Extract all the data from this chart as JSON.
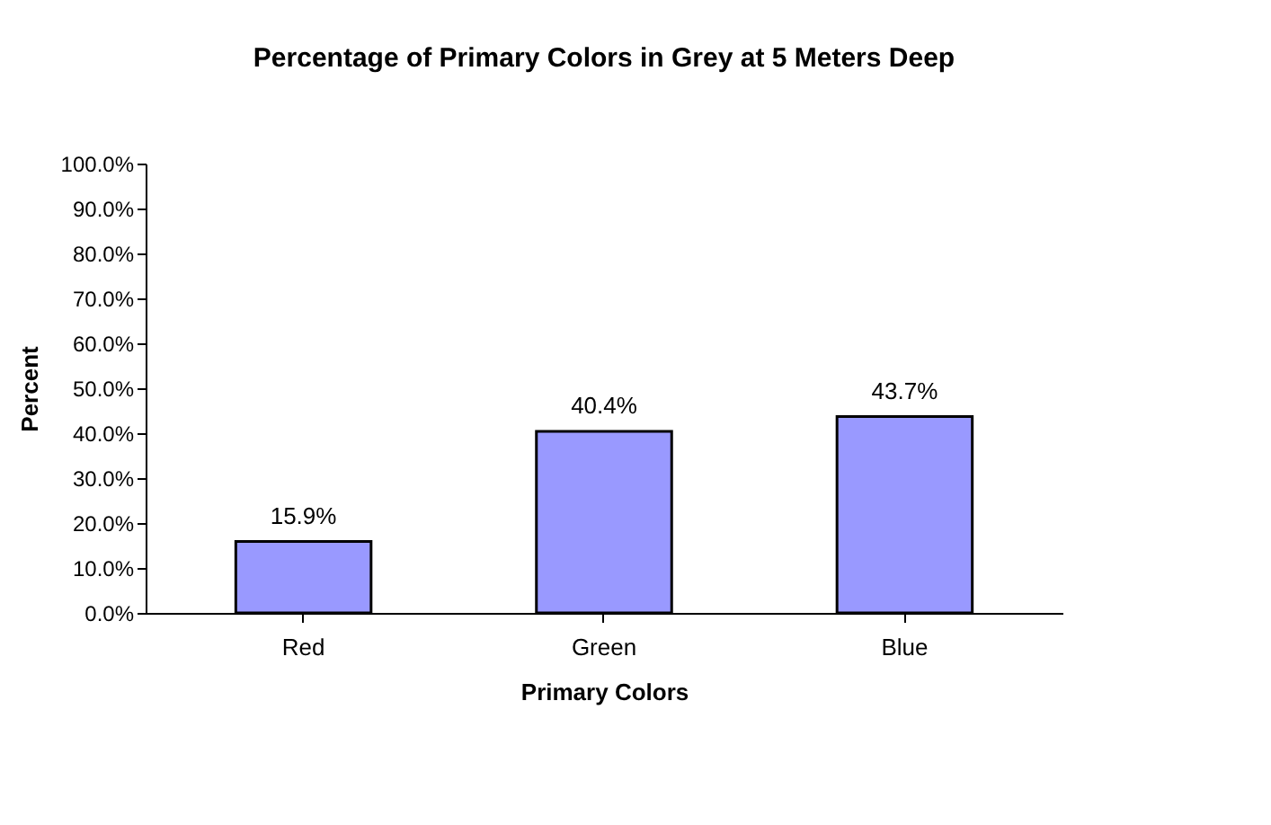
{
  "chart_data": {
    "type": "bar",
    "title": "Percentage of Primary Colors in Grey at 5 Meters Deep",
    "xlabel": "Primary Colors",
    "ylabel": "Percent",
    "categories": [
      "Red",
      "Green",
      "Blue"
    ],
    "values": [
      15.9,
      40.4,
      43.7
    ],
    "color": "#9999ff",
    "value_labels": [
      "15.9%",
      "40.4%",
      "43.7%"
    ],
    "ylim": [
      0,
      100
    ],
    "yticks": [
      {
        "value": 0,
        "label": "0.0%"
      },
      {
        "value": 10,
        "label": "10.0%"
      },
      {
        "value": 20,
        "label": "20.0%"
      },
      {
        "value": 30,
        "label": "30.0%"
      },
      {
        "value": 40,
        "label": "40.0%"
      },
      {
        "value": 50,
        "label": "50.0%"
      },
      {
        "value": 60,
        "label": "60.0%"
      },
      {
        "value": 70,
        "label": "70.0%"
      },
      {
        "value": 80,
        "label": "80.0%"
      },
      {
        "value": 90,
        "label": "90.0%"
      },
      {
        "value": 100,
        "label": "100.0%"
      }
    ],
    "grid": false
  }
}
